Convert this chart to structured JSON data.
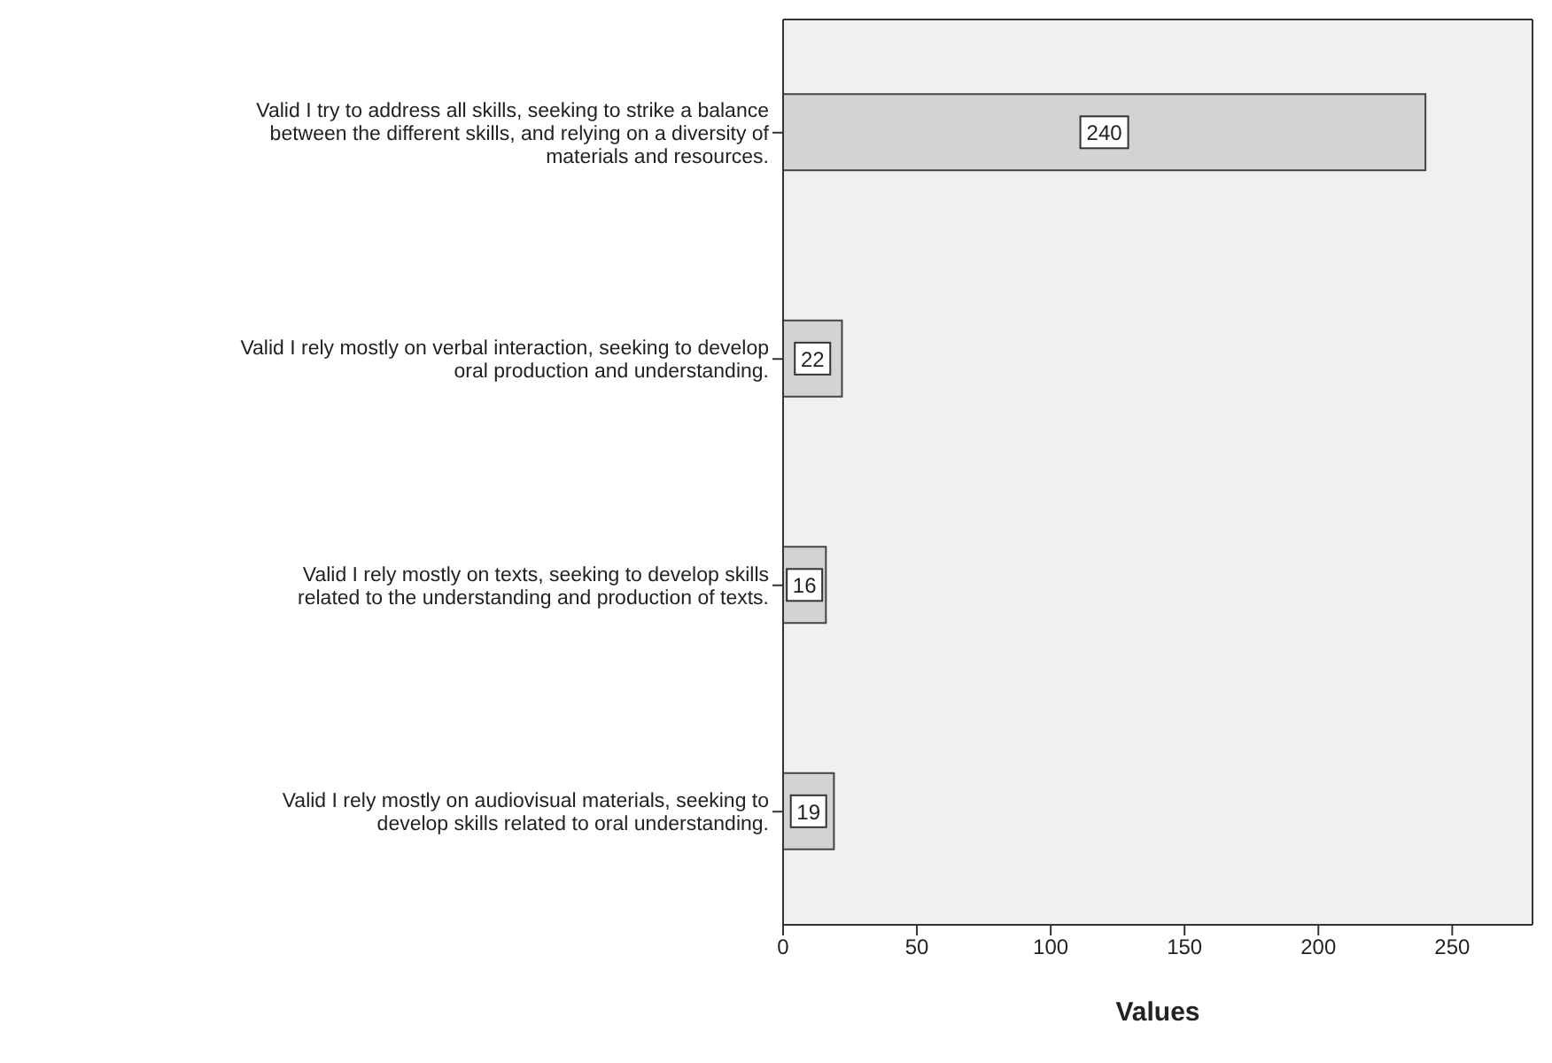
{
  "chart_data": {
    "type": "bar",
    "orientation": "horizontal",
    "xlabel": "Values",
    "categories": [
      "Valid I try to address all skills, seeking to strike a balance between the different skills, and relying on a diversity of materials and resources.",
      "Valid I rely mostly on verbal interaction, seeking to develop oral production and understanding.",
      "Valid I rely mostly on texts, seeking to develop skills related to the understanding and production of texts.",
      "Valid I rely mostly on audiovisual materials, seeking to develop skills related to oral understanding."
    ],
    "values": [
      240,
      22,
      16,
      19
    ],
    "color": "#d3d3d3",
    "data_labels": true,
    "xlim": [
      0,
      280
    ],
    "xticks": [
      0,
      50,
      100,
      150,
      200,
      250
    ],
    "grid": false
  }
}
